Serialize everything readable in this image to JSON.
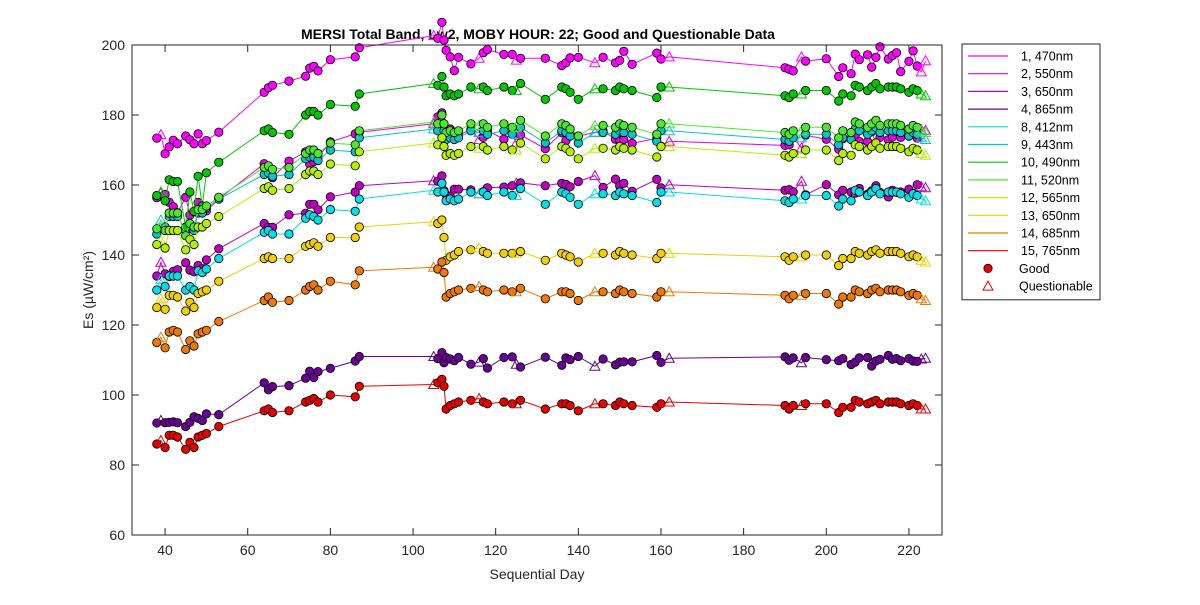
{
  "chart_data": {
    "type": "line",
    "title": "MERSI Total Band,  Lw2, MOBY HOUR: 22;  Good and Questionable Data",
    "xlabel": "Sequential Day",
    "ylabel": "Es (µW/cm²)",
    "xlim": [
      32,
      228
    ],
    "ylim": [
      60,
      200
    ],
    "xticks": [
      40,
      60,
      80,
      100,
      120,
      140,
      160,
      180,
      200,
      220
    ],
    "yticks": [
      60,
      80,
      100,
      120,
      140,
      160,
      180,
      200
    ],
    "grid": false,
    "legend_position": "outside-right",
    "x": [
      38,
      39,
      40,
      41,
      42,
      43,
      45,
      46,
      47,
      48,
      49,
      50,
      53,
      64,
      65,
      66,
      70,
      74,
      75,
      76,
      77,
      80,
      86,
      87,
      105,
      106,
      107,
      107.5,
      108,
      109,
      110,
      111,
      114,
      116,
      117,
      118,
      122,
      124,
      125,
      126,
      132,
      136,
      137,
      138,
      140,
      144,
      146,
      149,
      150,
      151,
      153,
      159,
      160,
      162,
      190,
      191,
      192,
      194,
      195,
      200,
      203,
      204,
      206,
      207,
      208,
      210,
      211,
      212,
      213,
      215,
      216,
      217,
      218,
      220,
      221,
      222,
      223,
      224
    ],
    "series": [
      {
        "name": "1, 470nm",
        "color": "#ff00ff",
        "values": [
          173.4,
          174.4,
          168.9,
          170.9,
          172.8,
          171.8,
          174.0,
          172.9,
          171.8,
          174.6,
          171.8,
          172.7,
          175.1,
          186.5,
          187.8,
          188.5,
          189.7,
          191.1,
          193.4,
          193.9,
          192.6,
          195.8,
          196.6,
          199.2,
          202.7,
          201.9,
          206.5,
          201.4,
          198.5,
          196.6,
          192.7,
          196.5,
          194.6,
          196.2,
          197.8,
          198.7,
          197.3,
          197.3,
          195.7,
          196.2,
          196.2,
          194.1,
          194.9,
          196.3,
          196.5,
          194.9,
          196.5,
          194.9,
          195.6,
          198.2,
          194.5,
          197.7,
          196.0,
          196.6,
          193.5,
          193.1,
          192.6,
          196.6,
          195.4,
          196.1,
          191.0,
          193.5,
          191.8,
          197.4,
          195.8,
          197.2,
          193.7,
          196.5,
          199.5,
          196.0,
          197.0,
          197.8,
          192.4,
          195.3,
          198.3,
          194.0,
          192.3,
          195.5
        ]
      },
      {
        "name": "2, 550nm",
        "color": "#e600e6",
        "values": [
          156.4,
          157.7,
          157.3,
          155.1,
          153.8,
          152.1,
          156.5,
          151.4,
          152.4,
          155.0,
          153.4,
          152.6,
          156.0,
          166.1,
          164.8,
          162.1,
          166.8,
          169.5,
          166.0,
          166.7,
          167.9,
          172.3,
          174.6,
          175.1,
          177.5,
          179.5,
          180.6,
          176.3,
          175.9,
          176.0,
          174.9,
          174.2,
          175.9,
          173.0,
          173.6,
          175.6,
          173.1,
          174.6,
          172.0,
          174.3,
          170.4,
          174.9,
          172.7,
          174.5,
          173.9,
          175.1,
          175.4,
          173.1,
          172.8,
          173.0,
          171.9,
          173.3,
          171.1,
          172.5,
          171.3,
          171.5,
          173.6,
          170.6,
          174.2,
          173.1,
          170.2,
          173.2,
          173.3,
          174.2,
          172.4,
          172.4,
          175.2,
          172.0,
          173.6,
          172.9,
          173.7,
          175.4,
          173.6,
          174.0,
          175.5,
          173.4,
          175.8,
          175.6
        ]
      },
      {
        "name": "3, 650nm",
        "color": "#c000c0",
        "values": [
          134.0,
          137.9,
          134.6,
          133.8,
          135.3,
          135.8,
          137.8,
          135.7,
          135.2,
          137.0,
          136.1,
          138.6,
          141.8,
          149.0,
          147.9,
          147.9,
          151.5,
          151.9,
          154.5,
          154.5,
          152.9,
          156.6,
          158.0,
          159.8,
          161.2,
          161.1,
          162.6,
          158.4,
          157.2,
          156.8,
          158.8,
          158.8,
          158.6,
          157.5,
          158.1,
          159.2,
          159.4,
          159.8,
          160.5,
          160.6,
          159.8,
          160.5,
          160.2,
          159.5,
          161.0,
          162.7,
          159.3,
          161.7,
          159.8,
          160.5,
          158.2,
          161.6,
          159.2,
          160.1,
          158.5,
          158.7,
          158.1,
          161.1,
          157.2,
          160.1,
          157.2,
          158.5,
          158.0,
          157.7,
          159.0,
          157.4,
          158.3,
          159.8,
          157.9,
          156.6,
          158.5,
          157.9,
          158.0,
          158.8,
          157.6,
          160.1,
          159.5,
          159.2
        ]
      },
      {
        "name": "4, 865nm",
        "color": "#6a0096",
        "values": [
          92.0,
          92.7,
          92.1,
          92.2,
          92.3,
          92.1,
          91.0,
          92.2,
          93.8,
          93.3,
          92.7,
          94.6,
          94.4,
          103.5,
          101.5,
          102.4,
          102.7,
          104.8,
          106.8,
          105.0,
          106.7,
          107.6,
          109.7,
          111.0,
          111.0,
          110.4,
          112.1,
          109.2,
          110.7,
          110.3,
          109.8,
          110.7,
          108.8,
          109.4,
          110.4,
          107.7,
          110.7,
          110.9,
          108.8,
          108.0,
          110.8,
          108.5,
          110.6,
          110.1,
          111.0,
          108.2,
          110.3,
          108.6,
          109.4,
          109.5,
          109.5,
          111.3,
          109.3,
          110.5,
          110.9,
          109.9,
          110.6,
          109.2,
          110.7,
          110.1,
          109.8,
          110.4,
          108.7,
          109.4,
          110.6,
          110.7,
          108.3,
          109.7,
          110.2,
          111.3,
          110.2,
          110.4,
          109.8,
          110.4,
          109.7,
          109.6,
          110.3,
          110.5
        ]
      },
      {
        "name": "8, 412nm",
        "color": "#00e0e8",
        "values": [
          130.0,
          133.0,
          131.0,
          134.0,
          134.0,
          134.0,
          130.0,
          131.0,
          130.0,
          135.5,
          135.0,
          136.0,
          139.0,
          146.5,
          147.0,
          146.0,
          146.0,
          150.5,
          151.5,
          151.0,
          150.0,
          153.0,
          152.5,
          156.0,
          158.5,
          158.0,
          160.5,
          158.0,
          155.5,
          156.0,
          155.5,
          156.0,
          158.0,
          157.5,
          158.0,
          157.0,
          158.0,
          157.0,
          157.0,
          159.0,
          154.5,
          158.0,
          157.5,
          156.5,
          154.5,
          157.5,
          157.5,
          157.0,
          158.0,
          157.5,
          157.0,
          155.0,
          158.0,
          158.0,
          155.5,
          155.0,
          156.0,
          156.0,
          157.0,
          157.0,
          154.0,
          156.0,
          155.5,
          158.5,
          158.0,
          157.0,
          158.0,
          159.0,
          157.5,
          158.0,
          158.0,
          158.0,
          157.5,
          156.5,
          157.5,
          157.0,
          156.0,
          155.5
        ]
      },
      {
        "name": "9, 443nm",
        "color": "#00c8c8",
        "values": [
          146.0,
          150.0,
          148.0,
          151.0,
          151.0,
          151.0,
          147.0,
          148.0,
          147.0,
          152.0,
          152.0,
          153.5,
          156.0,
          163.0,
          163.5,
          162.5,
          163.0,
          167.5,
          168.0,
          168.0,
          167.0,
          170.0,
          169.5,
          173.5,
          176.0,
          175.5,
          178.0,
          175.5,
          173.0,
          173.5,
          173.0,
          173.5,
          175.5,
          175.0,
          175.5,
          174.5,
          175.5,
          174.5,
          174.5,
          176.5,
          172.0,
          175.5,
          175.0,
          174.0,
          172.0,
          175.0,
          175.0,
          174.5,
          175.5,
          175.0,
          174.5,
          172.5,
          175.5,
          175.5,
          173.0,
          172.5,
          173.5,
          173.5,
          174.5,
          174.5,
          171.5,
          173.5,
          173.0,
          176.0,
          175.5,
          174.5,
          175.5,
          176.5,
          175.0,
          175.5,
          175.5,
          175.5,
          175.0,
          174.0,
          175.0,
          174.5,
          173.5,
          173.0
        ]
      },
      {
        "name": "10, 490nm",
        "color": "#00c800",
        "values": [
          157.0,
          158.0,
          155.5,
          161.5,
          161.0,
          161.0,
          148.0,
          158.0,
          152.5,
          162.5,
          154.0,
          163.5,
          166.5,
          175.5,
          176.0,
          175.0,
          174.5,
          180.0,
          181.0,
          181.0,
          180.0,
          183.0,
          182.5,
          186.0,
          189.0,
          188.5,
          191.0,
          188.0,
          185.5,
          186.0,
          185.5,
          186.0,
          188.0,
          187.5,
          188.0,
          187.0,
          188.0,
          187.0,
          187.0,
          189.0,
          184.5,
          188.0,
          187.5,
          186.5,
          184.5,
          187.5,
          187.5,
          187.0,
          188.0,
          187.5,
          187.0,
          185.0,
          188.0,
          188.0,
          185.5,
          185.0,
          186.0,
          186.0,
          187.0,
          187.0,
          184.0,
          186.0,
          185.5,
          188.5,
          188.0,
          187.0,
          188.0,
          189.0,
          187.5,
          188.0,
          188.0,
          188.0,
          187.5,
          186.5,
          187.5,
          187.0,
          186.0,
          185.5
        ]
      },
      {
        "name": "11, 520nm",
        "color": "#4bea28",
        "values": [
          147.5,
          148.5,
          147.0,
          152.0,
          152.0,
          152.0,
          145.5,
          149.0,
          148.0,
          153.0,
          153.0,
          154.0,
          156.5,
          165.0,
          165.5,
          164.5,
          165.0,
          169.0,
          170.0,
          170.0,
          169.0,
          172.0,
          171.5,
          175.5,
          178.0,
          177.5,
          180.0,
          177.5,
          175.0,
          175.5,
          175.0,
          175.5,
          177.5,
          177.0,
          177.5,
          176.5,
          177.5,
          176.5,
          176.5,
          178.5,
          174.0,
          177.5,
          177.0,
          176.0,
          174.0,
          177.0,
          177.0,
          176.5,
          177.5,
          177.0,
          176.5,
          174.5,
          177.5,
          177.5,
          175.0,
          174.5,
          175.5,
          175.5,
          176.5,
          176.5,
          173.5,
          175.5,
          175.0,
          178.0,
          177.5,
          176.5,
          177.5,
          178.5,
          177.0,
          177.5,
          177.5,
          177.5,
          177.0,
          176.0,
          177.0,
          176.5,
          175.5,
          175.0
        ]
      },
      {
        "name": "12, 565nm",
        "color": "#b4f000",
        "values": [
          143.0,
          144.0,
          142.0,
          147.0,
          147.0,
          147.0,
          141.5,
          144.5,
          143.0,
          148.0,
          148.0,
          149.0,
          151.0,
          159.0,
          159.5,
          158.5,
          159.0,
          163.0,
          164.0,
          164.0,
          163.0,
          166.0,
          165.5,
          169.5,
          172.0,
          171.5,
          173.5,
          171.0,
          168.5,
          169.0,
          168.5,
          169.0,
          171.0,
          170.5,
          171.0,
          170.0,
          171.0,
          170.0,
          170.0,
          172.0,
          167.5,
          171.0,
          170.5,
          169.5,
          167.5,
          170.5,
          170.5,
          170.0,
          171.0,
          170.5,
          170.0,
          168.0,
          171.0,
          171.0,
          168.5,
          168.0,
          169.0,
          169.0,
          170.0,
          170.0,
          167.0,
          169.0,
          168.5,
          171.5,
          171.0,
          170.0,
          171.0,
          172.0,
          170.5,
          171.0,
          171.0,
          171.0,
          170.5,
          169.5,
          170.5,
          170.0,
          169.0,
          168.5
        ]
      },
      {
        "name": "13, 650nm",
        "color": "#f0d000",
        "values": [
          125.0,
          127.5,
          124.5,
          128.5,
          128.5,
          128.0,
          124.0,
          126.5,
          125.0,
          129.0,
          129.5,
          130.0,
          132.5,
          139.0,
          139.5,
          139.0,
          139.0,
          142.5,
          143.0,
          143.5,
          142.5,
          145.0,
          145.0,
          148.0,
          149.5,
          149.0,
          150.0,
          145.0,
          138.5,
          139.5,
          140.0,
          141.0,
          141.5,
          142.0,
          141.0,
          140.5,
          140.5,
          140.5,
          140.5,
          141.0,
          138.5,
          140.5,
          140.0,
          139.5,
          138.0,
          140.5,
          140.5,
          140.0,
          141.0,
          140.5,
          140.0,
          139.0,
          140.5,
          140.5,
          139.5,
          138.5,
          139.5,
          139.5,
          140.0,
          140.0,
          137.0,
          139.0,
          139.0,
          141.0,
          140.5,
          140.0,
          141.0,
          141.5,
          140.5,
          141.0,
          141.0,
          141.0,
          140.5,
          139.5,
          140.0,
          139.5,
          138.5,
          138.0
        ]
      },
      {
        "name": "14, 685nm",
        "color": "#f07800",
        "values": [
          115.0,
          116.5,
          113.5,
          118.0,
          118.5,
          118.0,
          113.0,
          115.5,
          114.0,
          117.5,
          118.0,
          118.5,
          121.0,
          127.0,
          128.0,
          126.5,
          127.0,
          130.0,
          131.0,
          131.5,
          130.0,
          132.5,
          131.5,
          135.5,
          136.5,
          136.0,
          138.0,
          135.0,
          128.0,
          129.0,
          129.5,
          130.0,
          130.5,
          131.0,
          130.0,
          129.5,
          130.0,
          129.5,
          129.5,
          130.5,
          127.5,
          129.5,
          129.5,
          129.0,
          127.0,
          129.5,
          129.5,
          129.0,
          130.0,
          129.5,
          129.0,
          128.0,
          129.5,
          129.5,
          128.5,
          127.5,
          128.5,
          128.5,
          129.0,
          129.0,
          126.0,
          128.0,
          128.0,
          130.0,
          129.5,
          129.0,
          130.0,
          130.5,
          129.5,
          130.0,
          130.0,
          130.0,
          129.5,
          128.5,
          129.0,
          128.5,
          127.5,
          127.0
        ]
      },
      {
        "name": "15, 765nm",
        "color": "#e60000",
        "values": [
          86.0,
          87.0,
          85.0,
          88.5,
          88.5,
          88.0,
          84.5,
          86.5,
          85.0,
          88.0,
          88.5,
          89.0,
          91.0,
          95.5,
          96.0,
          95.0,
          95.5,
          98.0,
          98.5,
          99.0,
          98.0,
          100.0,
          99.5,
          102.5,
          103.0,
          103.5,
          104.5,
          102.5,
          96.0,
          97.0,
          97.5,
          98.0,
          98.5,
          99.0,
          98.0,
          97.5,
          98.0,
          97.5,
          97.5,
          98.5,
          96.0,
          97.5,
          97.5,
          97.0,
          95.5,
          97.5,
          97.5,
          97.0,
          98.0,
          97.5,
          97.0,
          96.5,
          97.5,
          98.0,
          97.0,
          96.0,
          97.0,
          97.0,
          97.5,
          97.5,
          95.0,
          96.5,
          96.5,
          98.5,
          98.0,
          97.5,
          98.0,
          98.5,
          97.5,
          98.0,
          98.0,
          98.0,
          97.5,
          97.0,
          97.5,
          97.0,
          96.0,
          96.0
        ]
      }
    ],
    "legend_markers": [
      {
        "label": "Good",
        "marker": "filled-circle",
        "color": "#e60000"
      },
      {
        "label": "Questionable",
        "marker": "open-triangle",
        "color": "#e60000"
      }
    ]
  }
}
